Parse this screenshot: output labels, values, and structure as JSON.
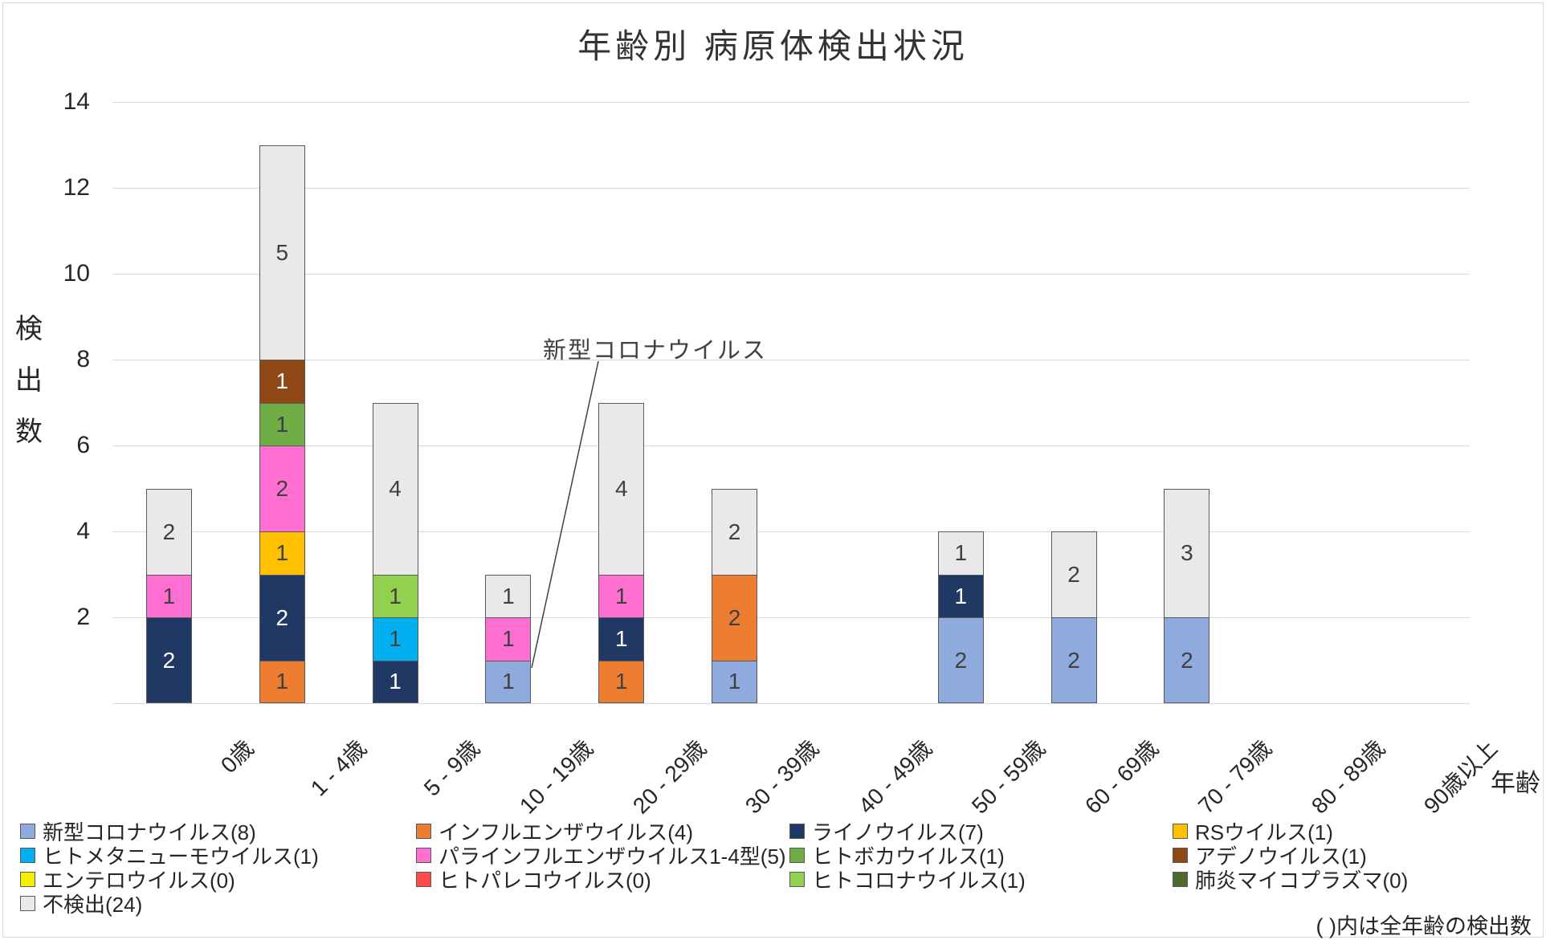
{
  "title": "年齢別 病原体検出状況",
  "y_axis": {
    "title": "検出数",
    "ticks": [
      2,
      4,
      6,
      8,
      10,
      12,
      14
    ]
  },
  "x_axis": {
    "title": "年齢"
  },
  "annotation": {
    "label": "新型コロナウイルス"
  },
  "footnote": "( )内は全年齢の検出数",
  "colors": {
    "gridline": "#d9d9d9",
    "segment_border": "#595959",
    "label_dark": "#404040",
    "label_light": "#ffffff"
  },
  "chart_data": {
    "type": "bar",
    "stacked": true,
    "title": "年齢別 病原体検出状況",
    "xlabel": "年齢",
    "ylabel": "検出数",
    "ylim": [
      0,
      14
    ],
    "grid": true,
    "legend_position": "bottom",
    "categories": [
      "0歳",
      "1 - 4歳",
      "5 - 9歳",
      "10 - 19歳",
      "20 - 29歳",
      "30 - 39歳",
      "40 - 49歳",
      "50 - 59歳",
      "60 - 69歳",
      "70 - 79歳",
      "80 - 89歳",
      "90歳以上"
    ],
    "series": [
      {
        "name": "新型コロナウイルス",
        "legend_label": "新型コロナウイルス(8)",
        "total": 8,
        "color": "#8FAADC",
        "values": [
          0,
          0,
          0,
          1,
          0,
          1,
          0,
          2,
          2,
          2,
          0,
          0
        ]
      },
      {
        "name": "インフルエンザウイルス",
        "legend_label": "インフルエンザウイルス(4)",
        "total": 4,
        "color": "#ED7D31",
        "values": [
          0,
          1,
          0,
          0,
          1,
          2,
          0,
          0,
          0,
          0,
          0,
          0
        ]
      },
      {
        "name": "ライノウイルス",
        "legend_label": "ライノウイルス(7)",
        "total": 7,
        "color": "#1F3864",
        "values": [
          2,
          2,
          1,
          0,
          1,
          0,
          0,
          1,
          0,
          0,
          0,
          0
        ]
      },
      {
        "name": "RSウイルス",
        "legend_label": "RSウイルス(1)",
        "total": 1,
        "color": "#FFC000",
        "values": [
          0,
          1,
          0,
          0,
          0,
          0,
          0,
          0,
          0,
          0,
          0,
          0
        ]
      },
      {
        "name": "ヒトメタニューモウイルス",
        "legend_label": "ヒトメタニューモウイルス(1)",
        "total": 1,
        "color": "#00B0F0",
        "values": [
          0,
          0,
          1,
          0,
          0,
          0,
          0,
          0,
          0,
          0,
          0,
          0
        ]
      },
      {
        "name": "パラインフルエンザウイルス1-4型",
        "legend_label": "パラインフルエンザウイルス1-4型(5)",
        "total": 5,
        "color": "#FF6FD2",
        "values": [
          1,
          2,
          0,
          1,
          1,
          0,
          0,
          0,
          0,
          0,
          0,
          0
        ]
      },
      {
        "name": "ヒトボカウイルス",
        "legend_label": "ヒトボカウイルス(1)",
        "total": 1,
        "color": "#70AD47",
        "values": [
          0,
          1,
          0,
          0,
          0,
          0,
          0,
          0,
          0,
          0,
          0,
          0
        ]
      },
      {
        "name": "アデノウイルス",
        "legend_label": "アデノウイルス(1)",
        "total": 1,
        "color": "#8F4714",
        "values": [
          0,
          1,
          0,
          0,
          0,
          0,
          0,
          0,
          0,
          0,
          0,
          0
        ]
      },
      {
        "name": "エンテロウイルス",
        "legend_label": "エンテロウイルス(0)",
        "total": 0,
        "color": "#F0F000",
        "values": [
          0,
          0,
          0,
          0,
          0,
          0,
          0,
          0,
          0,
          0,
          0,
          0
        ]
      },
      {
        "name": "ヒトパレコウイルス",
        "legend_label": "ヒトパレコウイルス(0)",
        "total": 0,
        "color": "#FF4B4B",
        "values": [
          0,
          0,
          0,
          0,
          0,
          0,
          0,
          0,
          0,
          0,
          0,
          0
        ]
      },
      {
        "name": "ヒトコロナウイルス",
        "legend_label": "ヒトコロナウイルス(1)",
        "total": 1,
        "color": "#92D050",
        "values": [
          0,
          0,
          1,
          0,
          0,
          0,
          0,
          0,
          0,
          0,
          0,
          0
        ]
      },
      {
        "name": "肺炎マイコプラズマ",
        "legend_label": "肺炎マイコプラズマ(0)",
        "total": 0,
        "color": "#4F6A2D",
        "values": [
          0,
          0,
          0,
          0,
          0,
          0,
          0,
          0,
          0,
          0,
          0,
          0
        ]
      },
      {
        "name": "不検出",
        "legend_label": "不検出(24)",
        "total": 24,
        "color": "#E9E9E9",
        "values": [
          2,
          5,
          4,
          1,
          4,
          2,
          0,
          1,
          2,
          3,
          0,
          0
        ]
      }
    ],
    "annotation": {
      "text": "新型コロナウイルス",
      "target_category": "10 - 19歳",
      "target_series": "新型コロナウイルス"
    }
  }
}
